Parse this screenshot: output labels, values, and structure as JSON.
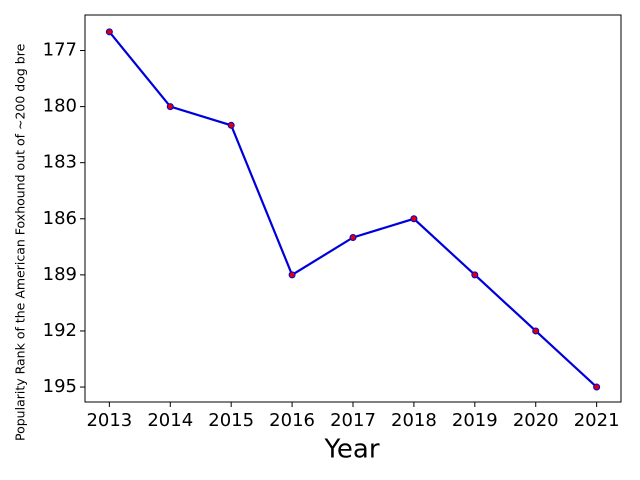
{
  "chart_data": {
    "type": "line",
    "x_label": "Year",
    "y_label": "Popularity Rank of the American Foxhound out of ~200 dog bre",
    "x": [
      2013,
      2014,
      2015,
      2016,
      2017,
      2018,
      2019,
      2020,
      2021
    ],
    "series": [
      {
        "color": "#0000dd",
        "marker_color": "#dd0000",
        "values": [
          176,
          180,
          181,
          189,
          187,
          186,
          189,
          192,
          195
        ]
      }
    ],
    "xlim": [
      2012.6,
      2021.4
    ],
    "xticks": [
      2013,
      2014,
      2015,
      2016,
      2017,
      2018,
      2019,
      2020,
      2021
    ],
    "ylim": [
      195.8,
      175.1
    ],
    "yticks": [
      177,
      180,
      183,
      186,
      189,
      192,
      195
    ]
  }
}
